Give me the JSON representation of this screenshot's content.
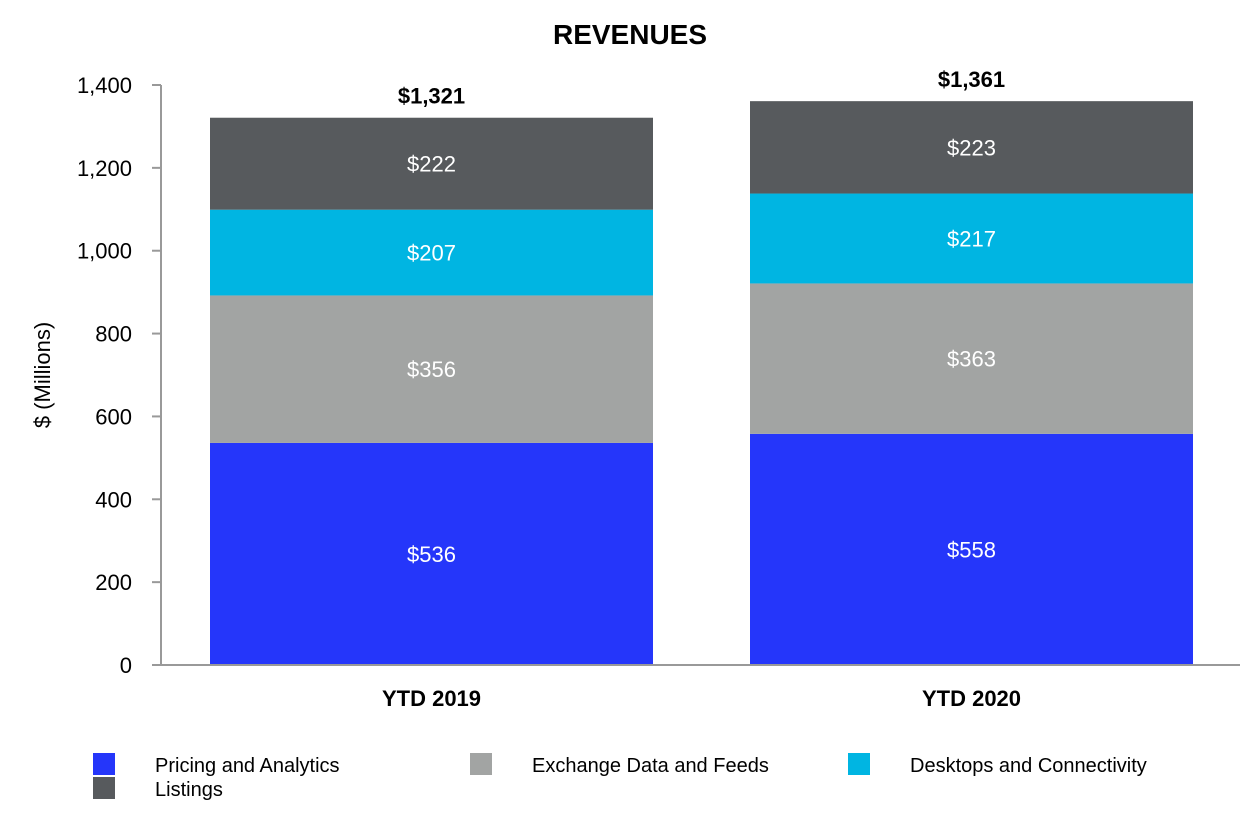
{
  "chart_data": {
    "type": "bar",
    "stacked": true,
    "title": "REVENUES",
    "xlabel": "",
    "ylabel": "$ (Millions)",
    "ylim": [
      0,
      1400
    ],
    "yticks": [
      0,
      200,
      400,
      600,
      800,
      1000,
      1200,
      1400
    ],
    "ytick_labels": [
      "0",
      "200",
      "400",
      "600",
      "800",
      "1,000",
      "1,200",
      "1,400"
    ],
    "categories": [
      "YTD 2019",
      "YTD 2020"
    ],
    "totals": [
      1321,
      1361
    ],
    "total_labels": [
      "$1,321",
      "$1,361"
    ],
    "series": [
      {
        "name": "Pricing and Analytics",
        "color": "#2536FA",
        "label_color": "#FFFFFF",
        "values": [
          536,
          558
        ],
        "labels": [
          "$536",
          "$558"
        ]
      },
      {
        "name": "Exchange Data and Feeds",
        "color": "#A2A4A3",
        "label_color": "#FFFFFF",
        "values": [
          356,
          363
        ],
        "labels": [
          "$356",
          "$363"
        ]
      },
      {
        "name": "Desktops and Connectivity",
        "color": "#00B5E2",
        "label_color": "#FFFFFF",
        "values": [
          207,
          217
        ],
        "labels": [
          "$207",
          "$217"
        ]
      },
      {
        "name": "Listings",
        "color": "#575A5D",
        "label_color": "#FFFFFF",
        "values": [
          222,
          223
        ],
        "labels": [
          "$222",
          "$223"
        ]
      }
    ],
    "legend_position": "bottom",
    "grid": false
  }
}
